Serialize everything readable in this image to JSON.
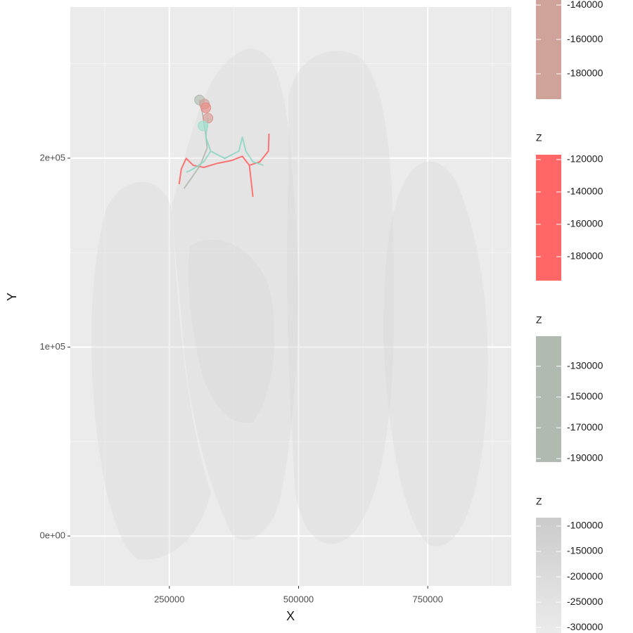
{
  "chart_data": {
    "type": "line",
    "x_label": "X",
    "y_label": "Y",
    "xlim": [
      58400,
      911700
    ],
    "xticks": [
      250000,
      500000,
      750000
    ],
    "ylim": [
      -26400,
      280000
    ],
    "yticks": [
      {
        "value": 0,
        "label": "0e+00"
      },
      {
        "value": 100000,
        "label": "1e+05"
      },
      {
        "value": 200000,
        "label": "2e+05"
      }
    ],
    "grid": true,
    "series": [
      {
        "color": "#ff6666",
        "x": [
          269000,
          273100,
          282600,
          296200,
          316600,
          343700,
          370900,
          391300,
          404900,
          425200,
          441600,
          442900,
          null,
          404900,
          411700
        ],
        "y": [
          186200,
          194300,
          199900,
          196200,
          195100,
          197300,
          198800,
          201000,
          196200,
          198100,
          203700,
          213000,
          null,
          196200,
          179500
        ]
      },
      {
        "color": "#b0bab0",
        "x": [
          308400,
          313800,
          319300,
          323300,
          309800,
          278500
        ],
        "y": [
          230800,
          224100,
          214800,
          205500,
          196200,
          183900
        ]
      },
      {
        "color": "#8fd6c4",
        "x": [
          324700,
          320600,
          330100,
          316600,
          296200,
          282600,
          null,
          330100,
          357300,
          384500,
          391300,
          398100,
          411700,
          432000
        ],
        "y": [
          221200,
          211100,
          203700,
          198100,
          194300,
          192500,
          null,
          203700,
          199900,
          203700,
          211100,
          203700,
          198100,
          196200
        ]
      }
    ],
    "points": {
      "x": [
        308400,
        317900,
        320600,
        324700,
        315200
      ],
      "y": [
        230800,
        228600,
        226700,
        221200,
        217100
      ],
      "colors": [
        "#b0bab0",
        "#cfa39a",
        "#e88a84",
        "#d99a94",
        "#9ee0d0"
      ]
    },
    "legends": [
      {
        "colors": [
          "#cfa39a",
          "#cfa39a"
        ],
        "lim": [
          -194700,
          -137100
        ],
        "ticks": [
          -140000,
          -160000,
          -180000
        ]
      },
      {
        "title": "Z",
        "colors": [
          "#ff6666",
          "#ff6666"
        ],
        "lim": [
          -194800,
          -117000
        ],
        "ticks": [
          -120000,
          -140000,
          -160000,
          -180000
        ]
      },
      {
        "title": "Z",
        "colors": [
          "#b0bab0",
          "#b0bab0"
        ],
        "lim": [
          -192300,
          -110500
        ],
        "ticks": [
          -130000,
          -150000,
          -170000,
          -190000
        ]
      },
      {
        "title": "Z",
        "colors": [
          "#ebebeb",
          "#cbcbcb"
        ],
        "lim": [
          -311000,
          -83300
        ],
        "ticks": [
          -100000,
          -150000,
          -200000,
          -250000,
          -300000
        ]
      }
    ]
  }
}
